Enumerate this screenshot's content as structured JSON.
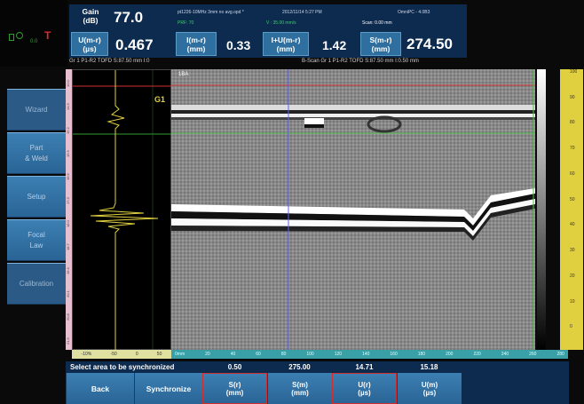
{
  "header": {
    "gain_label": "Gain\n(dB)",
    "gain_value": "77.0",
    "file_name": "pt1226-10MHz 3mm no avg.opd *",
    "datetime": "2012/11/14 5:27 PM",
    "device": "OmniPC - 4.0B3",
    "prf": "PRF: 70",
    "velocity": "V : 35.00 mm/s",
    "scan": "Scan: 0.00 mm",
    "readings": [
      {
        "label": "U(m-r)",
        "unit": "(µs)",
        "value": "0.467"
      },
      {
        "label": "I(m-r)",
        "unit": "(mm)",
        "value": "0.33"
      },
      {
        "label": "I+U(m-r)",
        "unit": "(mm)",
        "value": "1.42"
      },
      {
        "label": "S(m-r)",
        "unit": "(mm)",
        "value": "274.50"
      }
    ]
  },
  "sidebar": {
    "items": [
      {
        "label": "Wizard"
      },
      {
        "label": "Part\n& Weld"
      },
      {
        "label": "Setup"
      },
      {
        "label": "Focal\nLaw"
      },
      {
        "label": "Calibration"
      }
    ]
  },
  "ascan": {
    "title": "Gr 1 P1-R2 TOFD S:87.50 mm I:0",
    "gate_label": "G1",
    "x_ticks": [
      "-10%",
      "-50",
      "0",
      "50"
    ]
  },
  "bscan": {
    "title": "B-Scan Gr 1 P1-R2 TOFD S:87.50 mm I:0.50 mm",
    "marker": "1BA",
    "x_ticks": [
      "0mm",
      "20",
      "40",
      "60",
      "80",
      "100",
      "120",
      "140",
      "160",
      "180",
      "200",
      "220",
      "240",
      "260",
      "280"
    ]
  },
  "left_axis_ticks": [
    "10.0",
    "14.5",
    "15.2",
    "15.9",
    "16.6",
    "17.3",
    "18.0",
    "18.7",
    "19.4",
    "20.1",
    "20.8",
    "21.5"
  ],
  "right_axis_ticks": [
    "0",
    "10",
    "20",
    "30",
    "40",
    "50",
    "60",
    "70",
    "80",
    "90",
    "100"
  ],
  "bottom": {
    "prompt": "Select area to be synchronized",
    "back_label": "Back",
    "sync_label": "Synchronize",
    "values": [
      {
        "value": "0.50",
        "label": "S(r)",
        "unit": "(mm)"
      },
      {
        "value": "275.00",
        "label": "S(m)",
        "unit": "(mm)"
      },
      {
        "value": "14.71",
        "label": "U(r)",
        "unit": "(µs)"
      },
      {
        "value": "15.18",
        "label": "U(m)",
        "unit": "(µs)"
      }
    ]
  }
}
